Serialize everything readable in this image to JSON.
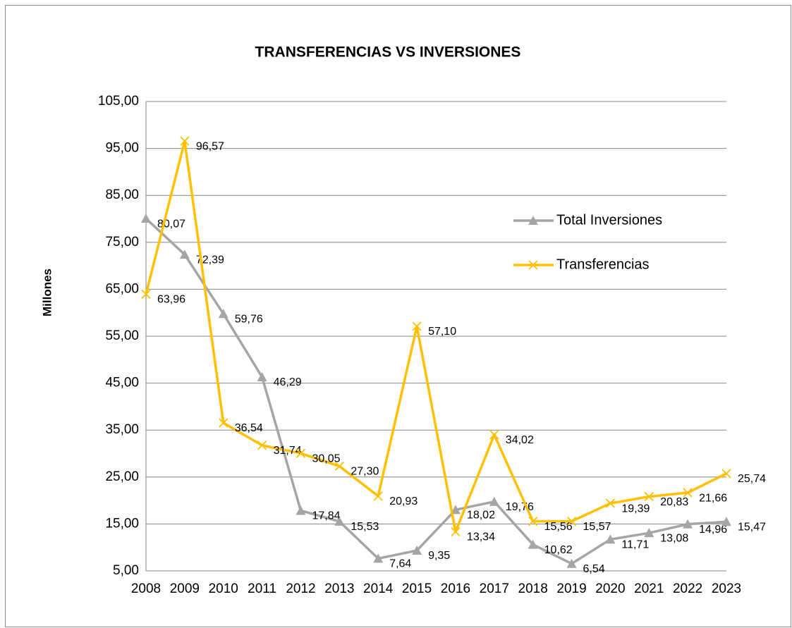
{
  "chart_data": {
    "type": "line",
    "title": "TRANSFERENCIAS VS  INVERSIONES",
    "y_label": "Millones",
    "categories": [
      "2008",
      "2009",
      "2010",
      "2011",
      "2012",
      "2013",
      "2014",
      "2015",
      "2016",
      "2017",
      "2018",
      "2019",
      "2020",
      "2021",
      "2022",
      "2023"
    ],
    "series": [
      {
        "name": "Total Inversiones",
        "color": "#a5a5a5",
        "marker": "triangle",
        "values": [
          80.07,
          72.39,
          59.76,
          46.29,
          17.84,
          15.53,
          7.64,
          9.35,
          18.02,
          19.76,
          10.62,
          6.54,
          11.71,
          13.08,
          14.96,
          15.47
        ],
        "value_labels": [
          "80,07",
          "72,39",
          "59,76",
          "46,29",
          "17,84",
          "15,53",
          "7,64",
          "9,35",
          "18,02",
          "19,76",
          "10,62",
          "6,54",
          "11,71",
          "13,08",
          "14,96",
          "15,47"
        ]
      },
      {
        "name": "Transferencias",
        "color": "#ffc000",
        "marker": "x",
        "values": [
          63.96,
          96.57,
          36.54,
          31.74,
          30.05,
          27.3,
          20.93,
          57.1,
          13.34,
          34.02,
          15.56,
          15.57,
          19.39,
          20.83,
          21.66,
          25.74
        ],
        "value_labels": [
          "63,96",
          "96,57",
          "36,54",
          "31,74",
          "30,05",
          "27,30",
          "20,93",
          "57,10",
          "13,34",
          "34,02",
          "15,56",
          "15,57",
          "19,39",
          "20,83",
          "21,66",
          "25,74"
        ]
      }
    ],
    "ylim": [
      5,
      105
    ],
    "yticks": [
      {
        "value": 5,
        "label": "5,00"
      },
      {
        "value": 15,
        "label": "15,00"
      },
      {
        "value": 25,
        "label": "25,00"
      },
      {
        "value": 35,
        "label": "35,00"
      },
      {
        "value": 45,
        "label": "45,00"
      },
      {
        "value": 55,
        "label": "55,00"
      },
      {
        "value": 65,
        "label": "65,00"
      },
      {
        "value": 75,
        "label": "75,00"
      },
      {
        "value": 85,
        "label": "85,00"
      },
      {
        "value": 95,
        "label": "95,00"
      },
      {
        "value": 105,
        "label": "105,00"
      }
    ],
    "grid": true,
    "legend": "right"
  }
}
